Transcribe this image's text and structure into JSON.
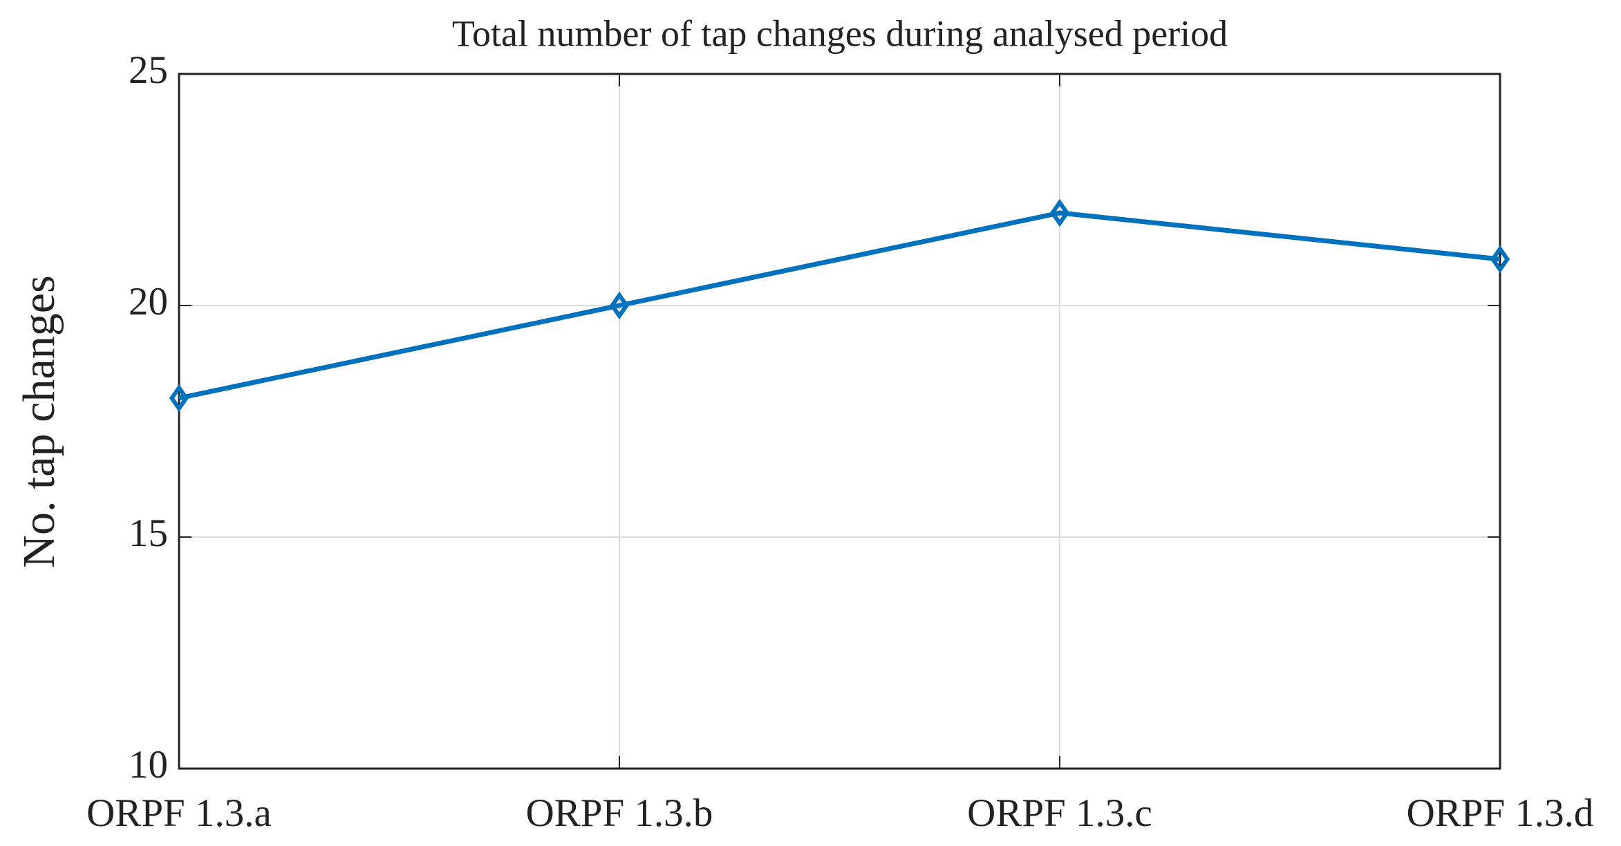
{
  "chart_data": {
    "type": "line",
    "title": "Total number of tap changes during analysed period",
    "y_label": "No. tap changes",
    "categories": [
      "ORPF 1.3.a",
      "ORPF 1.3.b",
      "ORPF 1.3.c",
      "ORPF 1.3.d"
    ],
    "series": [
      {
        "name": "No. tap changes",
        "color": "#0072bd",
        "values": [
          18,
          20,
          22,
          21
        ]
      }
    ],
    "ylim": [
      10,
      25
    ],
    "yticks": [
      10,
      15,
      20,
      25
    ],
    "grid": true
  }
}
